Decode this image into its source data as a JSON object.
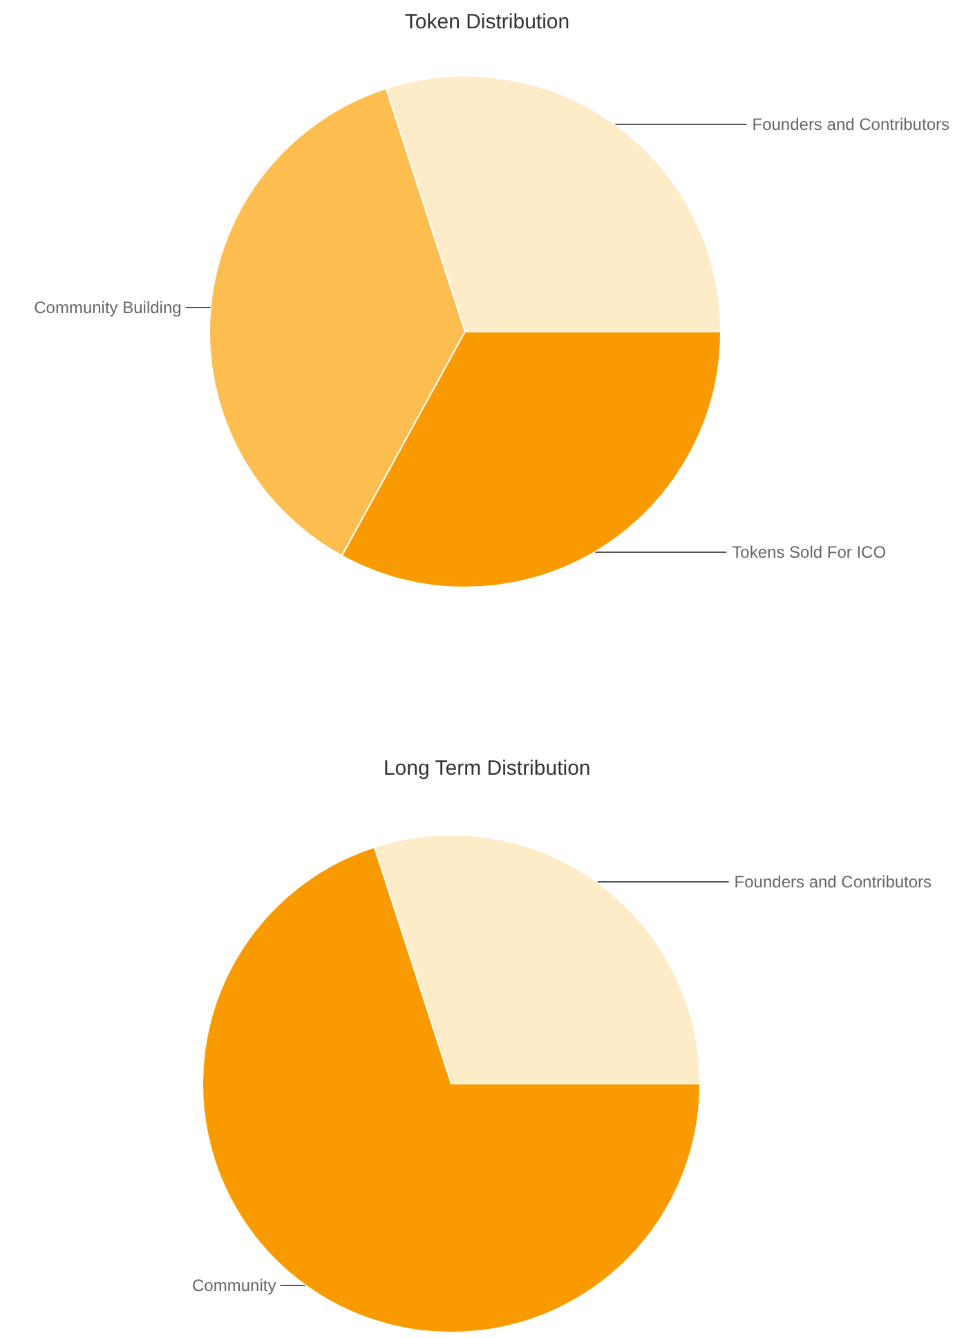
{
  "chart_data": [
    {
      "type": "pie",
      "title": "Token Distribution",
      "categories": [
        "Founders and Contributors",
        "Community Building",
        "Tokens Sold For ICO"
      ],
      "values": [
        30,
        37,
        33
      ],
      "colors": [
        "#feebc8",
        "#fdbd4f",
        "#f99b00"
      ]
    },
    {
      "type": "pie",
      "title": "Long Term Distribution",
      "categories": [
        "Founders and Contributors",
        "Community"
      ],
      "values": [
        30,
        70
      ],
      "colors": [
        "#feebc8",
        "#f99b00"
      ]
    }
  ]
}
